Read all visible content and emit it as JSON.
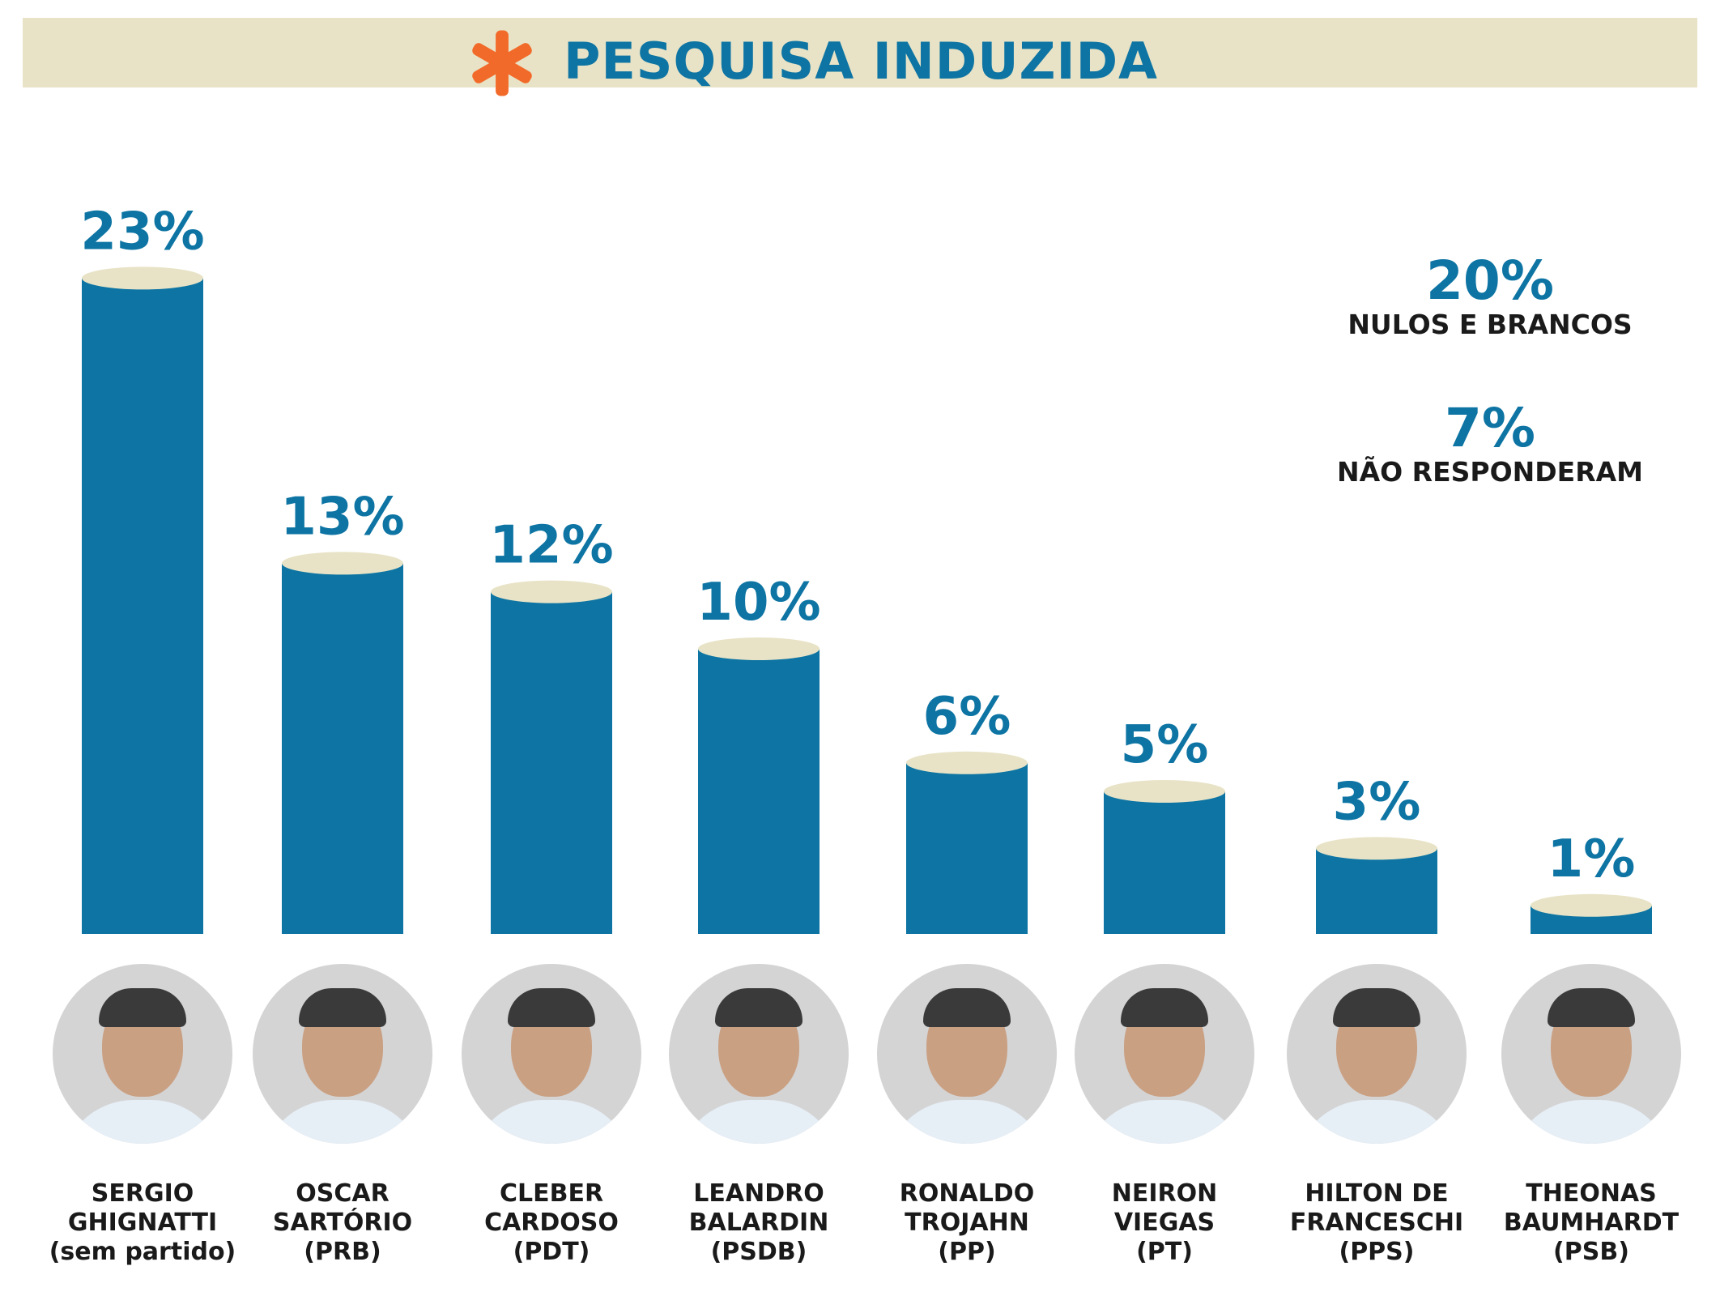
{
  "header": {
    "title": "PESQUISA INDUZIDA",
    "icon": "asterisk-icon",
    "band_color": "#e8e3c6",
    "accent_color": "#f26a2a"
  },
  "chart_data": {
    "type": "bar",
    "title": "PESQUISA INDUZIDA",
    "categories": [
      "SERGIO GHIGNATTI",
      "OSCAR SARTÓRIO",
      "CLEBER CARDOSO",
      "LEANDRO BALARDIN",
      "RONALDO TROJAHN",
      "NEIRON VIEGAS",
      "HILTON DE FRANCESCHI",
      "THEONAS BAUMHARDT"
    ],
    "values": [
      23,
      13,
      12,
      10,
      6,
      5,
      3,
      1
    ],
    "value_labels": [
      "23%",
      "13%",
      "12%",
      "10%",
      "6%",
      "5%",
      "3%",
      "1%"
    ],
    "unit": "%",
    "bar_color": "#0d74a3",
    "bar_top_color": "#e8e3c6",
    "label_color": "#0d74a3"
  },
  "side_stats": [
    {
      "value": "20%",
      "label": "NULOS E BRANCOS"
    },
    {
      "value": "7%",
      "label": "NÃO RESPONDERAM"
    }
  ],
  "candidates": [
    {
      "line1": "SERGIO",
      "line2": "GHIGNATTI",
      "party": "(sem partido)"
    },
    {
      "line1": "OSCAR",
      "line2": "SARTÓRIO",
      "party": "(PRB)"
    },
    {
      "line1": "CLEBER",
      "line2": "CARDOSO",
      "party": "(PDT)"
    },
    {
      "line1": "LEANDRO",
      "line2": "BALARDIN",
      "party": "(PSDB)"
    },
    {
      "line1": "RONALDO",
      "line2": "TROJAHN",
      "party": "(PP)"
    },
    {
      "line1": "NEIRON",
      "line2": "VIEGAS",
      "party": "(PT)"
    },
    {
      "line1": "HILTON DE",
      "line2": "FRANCESCHI",
      "party": "(PPS)"
    },
    {
      "line1": "THEONAS",
      "line2": "BAUMHARDT",
      "party": "(PSB)"
    }
  ]
}
